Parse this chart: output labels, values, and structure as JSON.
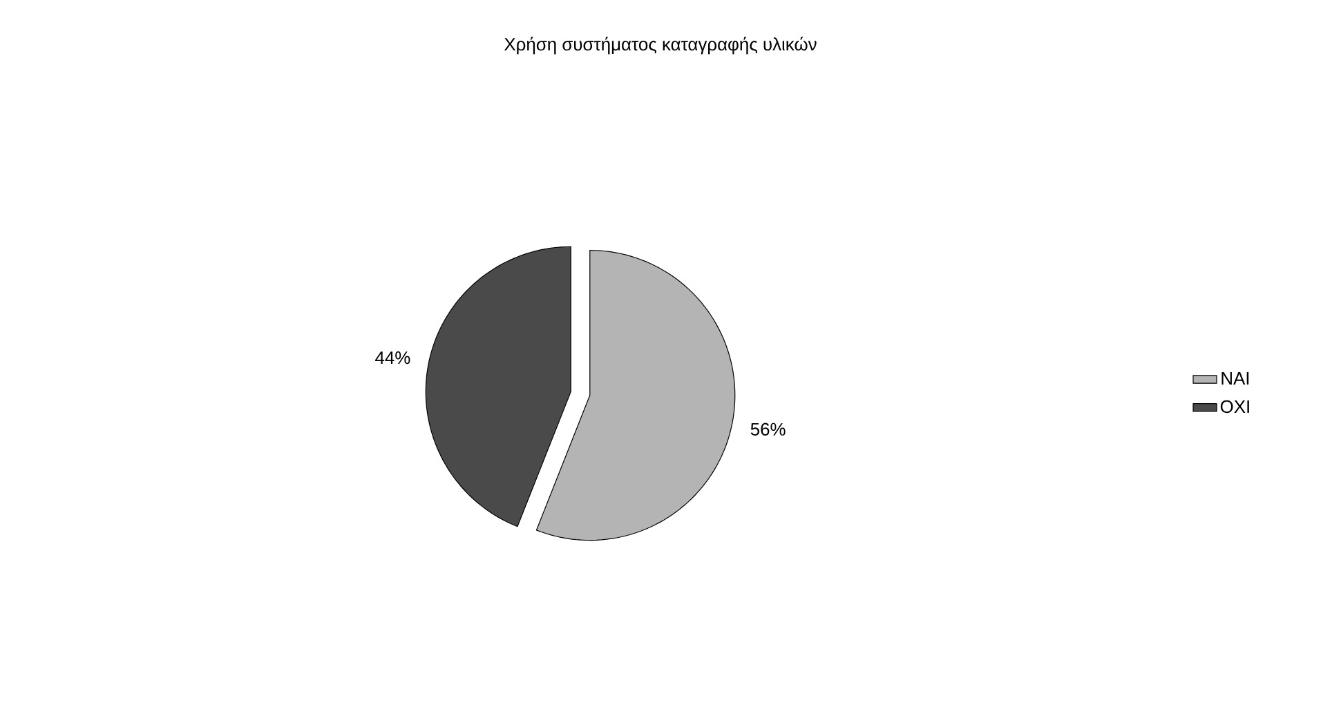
{
  "chart_data": {
    "type": "pie",
    "title": "Χρήση συστήματος καταγραφής υλικών",
    "categories": [
      "ΝΑΙ",
      "ΟΧΙ"
    ],
    "values": [
      56,
      44
    ],
    "colors": [
      "#b4b4b4",
      "#4a4a4a"
    ],
    "value_labels": [
      "56%",
      "44%"
    ],
    "legend": "right"
  }
}
